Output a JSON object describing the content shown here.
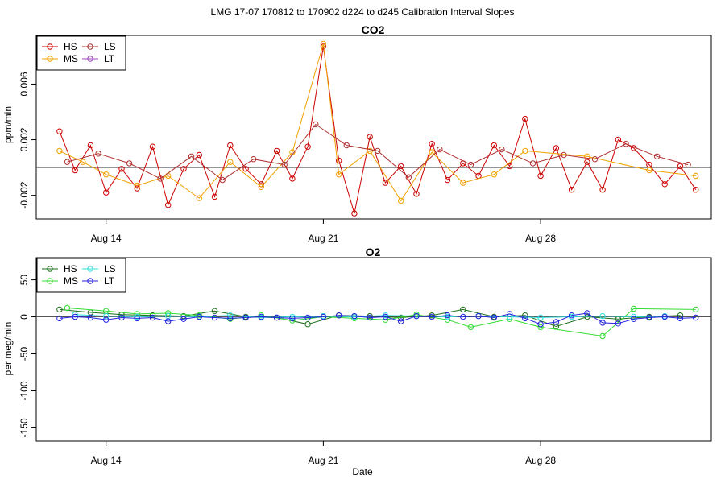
{
  "page_title": "LMG   17-07    170812 to 170902    d224 to d245   Calibration Interval Slopes",
  "x_axis_label": "Date",
  "colors": {
    "HS": "#cc0000",
    "MS": "#f0a000",
    "LS": "#b03030",
    "LT": "#a040c0",
    "O2_HS": "#1a6e1a",
    "O2_MS": "#33dd33",
    "O2_LS": "#33dddd",
    "O2_LT": "#2222dd"
  },
  "chart_data": [
    {
      "type": "line",
      "title": "CO2",
      "ylabel": "ppm/min",
      "xlabel": "",
      "xlim": [
        "2017-08-11T18:00",
        "2017-09-02T12:00"
      ],
      "ylim": [
        -0.0037,
        0.0095
      ],
      "yticks": [
        -0.002,
        0.002,
        0.006
      ],
      "ytick_labels": [
        "-0.002",
        "0.002",
        "0.006"
      ],
      "xticks": [
        "2017-08-14",
        "2017-08-21",
        "2017-08-28"
      ],
      "xtick_labels": [
        "Aug 14",
        "Aug 21",
        "Aug 28"
      ],
      "reference_line": 0,
      "legend": {
        "placement": "top-left",
        "entries": [
          "HS",
          "MS",
          "LS",
          "LT"
        ]
      },
      "series": [
        {
          "name": "HS",
          "x": [
            "2017-08-12T12:00",
            "2017-08-13T00:00",
            "2017-08-13T12:00",
            "2017-08-14T00:00",
            "2017-08-14T12:00",
            "2017-08-15T00:00",
            "2017-08-15T12:00",
            "2017-08-16T00:00",
            "2017-08-16T12:00",
            "2017-08-17T00:00",
            "2017-08-17T12:00",
            "2017-08-18T00:00",
            "2017-08-18T12:00",
            "2017-08-19T00:00",
            "2017-08-19T12:00",
            "2017-08-20T00:00",
            "2017-08-20T12:00",
            "2017-08-21T00:00",
            "2017-08-21T12:00",
            "2017-08-22T00:00",
            "2017-08-22T12:00",
            "2017-08-23T00:00",
            "2017-08-23T12:00",
            "2017-08-24T00:00",
            "2017-08-24T12:00",
            "2017-08-25T00:00",
            "2017-08-25T12:00",
            "2017-08-26T00:00",
            "2017-08-26T12:00",
            "2017-08-27T00:00",
            "2017-08-27T12:00",
            "2017-08-28T00:00",
            "2017-08-28T12:00",
            "2017-08-29T00:00",
            "2017-08-29T12:00",
            "2017-08-30T00:00",
            "2017-08-30T12:00",
            "2017-08-31T00:00",
            "2017-08-31T12:00",
            "2017-09-01T00:00",
            "2017-09-01T12:00",
            "2017-09-02T00:00"
          ],
          "y": [
            0.0026,
            -0.0002,
            0.0016,
            -0.0018,
            -0.0001,
            -0.0015,
            0.0015,
            -0.0027,
            -0.0001,
            0.0009,
            -0.0021,
            0.0016,
            -0.0001,
            -0.0012,
            0.0012,
            -0.0008,
            0.0015,
            0.0087,
            0.0005,
            -0.0033,
            0.0022,
            -0.0011,
            0.0001,
            -0.0019,
            0.0017,
            -0.0009,
            0.0003,
            -0.0006,
            0.0016,
            0.0001,
            0.0035,
            -0.0006,
            0.0014,
            -0.0016,
            0.0004,
            -0.0016,
            0.002,
            0.0014,
            0.0002,
            -0.0012,
            0.0001,
            -0.0016
          ]
        },
        {
          "name": "MS",
          "x": [
            "2017-08-12T12:00",
            "2017-08-13T06:00",
            "2017-08-14T00:00",
            "2017-08-15T00:00",
            "2017-08-16T00:00",
            "2017-08-17T00:00",
            "2017-08-18T00:00",
            "2017-08-19T00:00",
            "2017-08-20T00:00",
            "2017-08-21T00:00",
            "2017-08-21T12:00",
            "2017-08-22T12:00",
            "2017-08-23T12:00",
            "2017-08-24T12:00",
            "2017-08-25T12:00",
            "2017-08-26T12:00",
            "2017-08-27T12:00",
            "2017-08-29T12:00",
            "2017-08-31T12:00",
            "2017-09-02T00:00"
          ],
          "y": [
            0.0012,
            0.0004,
            -0.0005,
            -0.0013,
            -0.0006,
            -0.0022,
            0.0004,
            -0.0014,
            0.0011,
            0.0089,
            -0.0005,
            0.0012,
            -0.0024,
            0.0011,
            -0.0011,
            -0.0005,
            0.0012,
            0.0008,
            -0.0002,
            -0.0006
          ]
        },
        {
          "name": "LS",
          "x": [
            "2017-08-12T18:00",
            "2017-08-13T18:00",
            "2017-08-14T18:00",
            "2017-08-15T18:00",
            "2017-08-16T18:00",
            "2017-08-17T18:00",
            "2017-08-18T18:00",
            "2017-08-19T18:00",
            "2017-08-20T18:00",
            "2017-08-21T18:00",
            "2017-08-22T18:00",
            "2017-08-23T18:00",
            "2017-08-24T18:00",
            "2017-08-25T18:00",
            "2017-08-26T18:00",
            "2017-08-27T18:00",
            "2017-08-28T18:00",
            "2017-08-29T18:00",
            "2017-08-30T18:00",
            "2017-08-31T18:00",
            "2017-09-01T18:00"
          ],
          "y": [
            0.0004,
            0.001,
            0.0003,
            -0.0008,
            0.0008,
            -0.0009,
            0.0006,
            0.0002,
            0.0031,
            0.0016,
            0.0012,
            -0.0007,
            0.0013,
            0.0002,
            0.0013,
            0.0003,
            0.0009,
            0.0006,
            0.0017,
            0.0008,
            0.0002
          ]
        },
        {
          "name": "LT",
          "x": [],
          "y": []
        }
      ]
    },
    {
      "type": "line",
      "title": "O2",
      "ylabel": "per meg/min",
      "xlabel": "Date",
      "xlim": [
        "2017-08-11T18:00",
        "2017-09-02T12:00"
      ],
      "ylim": [
        -168,
        80
      ],
      "yticks": [
        -150,
        -100,
        -50,
        0,
        50
      ],
      "ytick_labels": [
        "-150",
        "-100",
        "-50",
        "0",
        "50"
      ],
      "xticks": [
        "2017-08-14",
        "2017-08-21",
        "2017-08-28"
      ],
      "xtick_labels": [
        "Aug 14",
        "Aug 21",
        "Aug 28"
      ],
      "reference_line": 0,
      "legend": {
        "placement": "top-left",
        "entries": [
          "HS",
          "MS",
          "LS",
          "LT"
        ]
      },
      "series": [
        {
          "name": "HS",
          "x": [
            "2017-08-12T12:00",
            "2017-08-13T12:00",
            "2017-08-14T12:00",
            "2017-08-15T12:00",
            "2017-08-16T12:00",
            "2017-08-17T12:00",
            "2017-08-18T12:00",
            "2017-08-19T12:00",
            "2017-08-20T12:00",
            "2017-08-21T12:00",
            "2017-08-22T12:00",
            "2017-08-23T12:00",
            "2017-08-24T12:00",
            "2017-08-25T12:00",
            "2017-08-26T12:00",
            "2017-08-27T12:00",
            "2017-08-28T12:00",
            "2017-08-29T12:00",
            "2017-08-30T12:00",
            "2017-08-31T12:00",
            "2017-09-01T12:00"
          ],
          "y": [
            10,
            6,
            3,
            2,
            1,
            8,
            0,
            -1,
            -10,
            2,
            1,
            -1,
            2,
            10,
            0,
            2,
            -13,
            0,
            -3,
            0,
            2
          ]
        },
        {
          "name": "MS",
          "x": [
            "2017-08-12T18:00",
            "2017-08-14T00:00",
            "2017-08-15T00:00",
            "2017-08-16T00:00",
            "2017-08-17T00:00",
            "2017-08-18T00:00",
            "2017-08-19T00:00",
            "2017-08-20T00:00",
            "2017-08-21T00:00",
            "2017-08-22T00:00",
            "2017-08-23T00:00",
            "2017-08-24T00:00",
            "2017-08-25T00:00",
            "2017-08-25T18:00",
            "2017-08-27T00:00",
            "2017-08-28T00:00",
            "2017-08-30T00:00",
            "2017-08-31T00:00",
            "2017-09-02T00:00"
          ],
          "y": [
            12,
            8,
            4,
            5,
            2,
            -3,
            2,
            -5,
            0,
            -2,
            -4,
            3,
            -4,
            -14,
            -3,
            -14,
            -26,
            11,
            10
          ]
        },
        {
          "name": "LS",
          "x": [
            "2017-08-13T00:00",
            "2017-08-14T00:00",
            "2017-08-15T00:00",
            "2017-08-16T00:00",
            "2017-08-17T00:00",
            "2017-08-18T00:00",
            "2017-08-19T00:00",
            "2017-08-20T00:00",
            "2017-08-21T00:00",
            "2017-08-22T00:00",
            "2017-08-23T00:00",
            "2017-08-24T00:00",
            "2017-08-25T00:00",
            "2017-08-26T00:00",
            "2017-08-27T00:00",
            "2017-08-28T00:00",
            "2017-08-29T00:00",
            "2017-08-30T00:00",
            "2017-08-31T00:00",
            "2017-09-01T00:00"
          ],
          "y": [
            3,
            1,
            0,
            1,
            0,
            2,
            -1,
            0,
            1,
            0,
            2,
            1,
            0,
            1,
            0,
            -1,
            0,
            1,
            0,
            1
          ]
        },
        {
          "name": "LT",
          "x": [
            "2017-08-12T12:00",
            "2017-08-13T00:00",
            "2017-08-13T12:00",
            "2017-08-14T00:00",
            "2017-08-14T12:00",
            "2017-08-15T00:00",
            "2017-08-15T12:00",
            "2017-08-16T00:00",
            "2017-08-16T12:00",
            "2017-08-17T00:00",
            "2017-08-17T12:00",
            "2017-08-18T00:00",
            "2017-08-18T12:00",
            "2017-08-19T00:00",
            "2017-08-19T12:00",
            "2017-08-20T00:00",
            "2017-08-20T12:00",
            "2017-08-21T00:00",
            "2017-08-21T12:00",
            "2017-08-22T00:00",
            "2017-08-22T12:00",
            "2017-08-23T00:00",
            "2017-08-23T12:00",
            "2017-08-24T00:00",
            "2017-08-24T12:00",
            "2017-08-25T00:00",
            "2017-08-25T12:00",
            "2017-08-26T00:00",
            "2017-08-26T12:00",
            "2017-08-27T00:00",
            "2017-08-27T12:00",
            "2017-08-28T00:00",
            "2017-08-28T12:00",
            "2017-08-29T00:00",
            "2017-08-29T12:00",
            "2017-08-30T00:00",
            "2017-08-30T12:00",
            "2017-08-31T00:00",
            "2017-08-31T12:00",
            "2017-09-01T00:00",
            "2017-09-01T12:00",
            "2017-09-02T00:00"
          ],
          "y": [
            -2,
            0,
            -1,
            -4,
            -1,
            -2,
            -1,
            -6,
            -3,
            0,
            -1,
            -2,
            -1,
            0,
            -1,
            -2,
            -1,
            0,
            2,
            1,
            -1,
            0,
            -6,
            1,
            0,
            2,
            0,
            1,
            -1,
            4,
            -2,
            -10,
            -7,
            2,
            5,
            -8,
            -9,
            -3,
            -1,
            0,
            -2,
            -1
          ]
        }
      ]
    }
  ]
}
